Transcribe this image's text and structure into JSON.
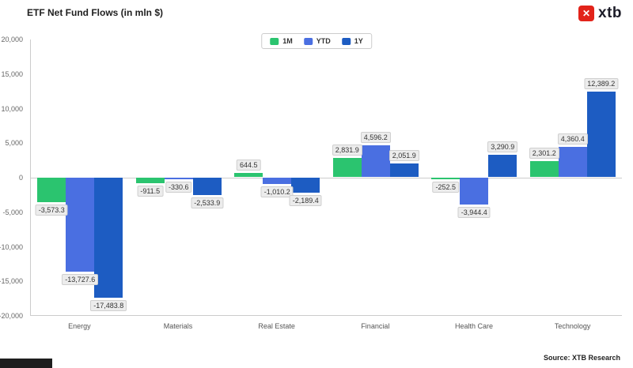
{
  "header": {
    "title": "ETF Net Fund Flows (in mln $)"
  },
  "logo": {
    "text": "xtb",
    "icon": "xtb-cross-icon",
    "brand_color": "#e2231a"
  },
  "footer": {
    "source": "Source: XTB Research"
  },
  "chart_data": {
    "type": "bar",
    "title": "ETF Net Fund Flows (in mln $)",
    "categories": [
      "Energy",
      "Materials",
      "Real Estate",
      "Financial",
      "Health Care",
      "Technology"
    ],
    "series": [
      {
        "name": "1M",
        "color": "#2bc46f",
        "values": [
          -3573.3,
          -911.5,
          644.5,
          2831.9,
          -252.5,
          2301.2
        ]
      },
      {
        "name": "YTD",
        "color": "#4a6fe1",
        "values": [
          -13727.6,
          -330.6,
          -1010.2,
          4596.2,
          -3944.4,
          4360.4
        ]
      },
      {
        "name": "1Y",
        "color": "#1d5cc2",
        "values": [
          -17483.8,
          -2533.9,
          -2189.4,
          2051.9,
          3290.9,
          12389.2
        ]
      }
    ],
    "xlabel": "",
    "ylabel": "",
    "ylim": [
      -20000,
      20000
    ],
    "ytick_step": 5000,
    "yticks_labels": [
      "20,000",
      "15,000",
      "10,000",
      "5,000",
      "0",
      "-5,000",
      "-10,000",
      "-15,000",
      "-20,000"
    ],
    "grid": false,
    "legend_position": "top-center"
  }
}
